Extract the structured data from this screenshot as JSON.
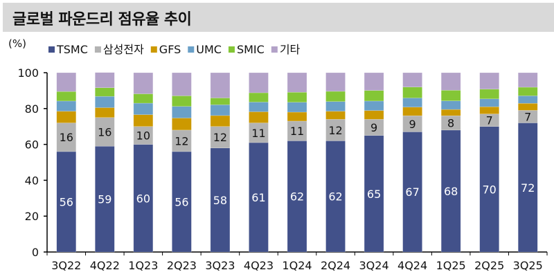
{
  "header": {
    "title": "글로벌 파운드리 점유율 추이"
  },
  "chart_data": {
    "type": "bar",
    "stacked": true,
    "title": "글로벌 파운드리 점유율 추이",
    "ylabel": "(%)",
    "ylim": [
      0,
      100
    ],
    "yticks": [
      0,
      20,
      40,
      60,
      80,
      100
    ],
    "grid": false,
    "legend": "top",
    "categories": [
      "3Q22",
      "4Q22",
      "1Q23",
      "2Q23",
      "3Q23",
      "4Q23",
      "1Q24",
      "2Q24",
      "3Q24",
      "4Q24",
      "1Q25",
      "2Q25",
      "3Q25"
    ],
    "series": [
      {
        "name": "TSMC",
        "color": "#42518a",
        "values": [
          56,
          59,
          60,
          56,
          58,
          61,
          62,
          62,
          65,
          67,
          68,
          70,
          72
        ],
        "labels": true
      },
      {
        "name": "삼성전자",
        "color": "#b3b3b3",
        "values": [
          16,
          16,
          10,
          12,
          12,
          11,
          11,
          12,
          9,
          9,
          8,
          7,
          7
        ],
        "labels": true
      },
      {
        "name": "GFS",
        "color": "#cc9900",
        "values": [
          6.5,
          5.5,
          6.6,
          6.7,
          6.1,
          6.2,
          5.0,
          4.5,
          4.9,
          4.8,
          3.5,
          4.0,
          3.9
        ]
      },
      {
        "name": "UMC",
        "color": "#6aa0c8",
        "values": [
          5.7,
          6.3,
          6.4,
          6.5,
          6.0,
          5.4,
          5.5,
          5.4,
          5.3,
          5.1,
          4.8,
          4.4,
          4.2
        ]
      },
      {
        "name": "SMIC",
        "color": "#84c636",
        "values": [
          5.3,
          4.8,
          5.2,
          5.9,
          3.8,
          5.2,
          5.6,
          5.7,
          5.9,
          6.1,
          5.9,
          5.4,
          4.8
        ]
      },
      {
        "name": "기타",
        "color": "#b3a2c8",
        "values": [
          10.5,
          8.5,
          11.8,
          12.9,
          14.1,
          11.2,
          10.9,
          10.4,
          9.9,
          8.0,
          9.8,
          9.2,
          8.1
        ]
      }
    ]
  }
}
